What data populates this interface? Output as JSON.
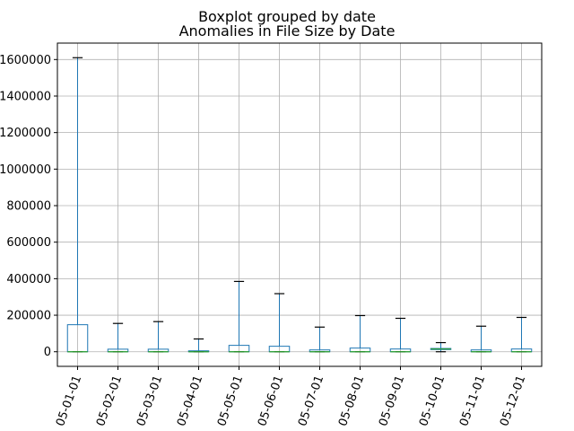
{
  "chart_data": {
    "type": "boxplot",
    "suptitle": "Boxplot grouped by date",
    "title": "Anomalies in File Size by Date",
    "xlabel": "",
    "ylabel": "",
    "grid": true,
    "ylim": [
      -80000,
      1690000
    ],
    "yticks": [
      0,
      200000,
      400000,
      600000,
      800000,
      1000000,
      1200000,
      1400000,
      1600000
    ],
    "ytick_labels": [
      "0",
      "200000",
      "400000",
      "600000",
      "800000",
      "1000000",
      "1200000",
      "1400000",
      "1600000"
    ],
    "categories": [
      "05-01-01",
      "05-02-01",
      "05-03-01",
      "05-04-01",
      "05-05-01",
      "05-06-01",
      "05-07-01",
      "05-08-01",
      "05-09-01",
      "05-10-01",
      "05-11-01",
      "05-12-01"
    ],
    "boxes": [
      {
        "whislo": 0,
        "q1": 0,
        "med": 0,
        "q3": 148000,
        "whishi": 1610000
      },
      {
        "whislo": 0,
        "q1": 0,
        "med": 0,
        "q3": 14000,
        "whishi": 155000
      },
      {
        "whislo": 0,
        "q1": 0,
        "med": 0,
        "q3": 14000,
        "whishi": 165000
      },
      {
        "whislo": 0,
        "q1": 0,
        "med": 0,
        "q3": 5000,
        "whishi": 70000
      },
      {
        "whislo": 0,
        "q1": 0,
        "med": 0,
        "q3": 35000,
        "whishi": 385000
      },
      {
        "whislo": 0,
        "q1": 0,
        "med": 0,
        "q3": 30000,
        "whishi": 318000
      },
      {
        "whislo": 0,
        "q1": 0,
        "med": 0,
        "q3": 10000,
        "whishi": 135000
      },
      {
        "whislo": 0,
        "q1": 0,
        "med": 0,
        "q3": 20000,
        "whishi": 198000
      },
      {
        "whislo": 0,
        "q1": 0,
        "med": 0,
        "q3": 15000,
        "whishi": 183000
      },
      {
        "whislo": 0,
        "q1": 12000,
        "med": 15000,
        "q3": 18000,
        "whishi": 50000
      },
      {
        "whislo": 0,
        "q1": 0,
        "med": 0,
        "q3": 10000,
        "whishi": 140000
      },
      {
        "whislo": 0,
        "q1": 0,
        "med": 0,
        "q3": 15000,
        "whishi": 188000
      }
    ],
    "colors": {
      "box": "#1f77b4",
      "median": "#2ca02c",
      "cap": "#000000",
      "grid": "#b0b0b0"
    }
  }
}
